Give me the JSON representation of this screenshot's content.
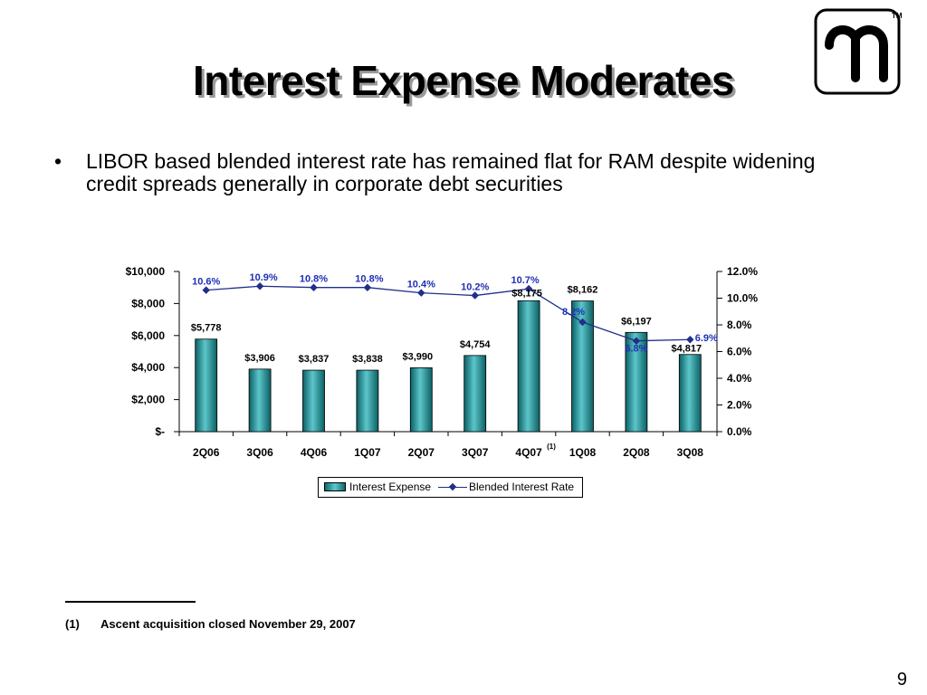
{
  "slide": {
    "title": "Interest Expense Moderates",
    "bullet": "LIBOR based blended interest rate has remained flat for RAM despite widening credit spreads generally in corporate debt securities",
    "bullet_marker": "•",
    "logo": {
      "icon": "company-logo-icon",
      "trademark": "TM"
    },
    "footnote": {
      "number": "(1)",
      "text": "Ascent acquisition closed November 29, 2007"
    },
    "page_number": "9"
  },
  "chart_data": {
    "type": "bar",
    "categories": [
      "2Q06",
      "3Q06",
      "4Q06",
      "1Q07",
      "2Q07",
      "3Q07",
      "4Q07",
      "1Q08",
      "2Q08",
      "3Q08"
    ],
    "category_superscript": {
      "index": 6,
      "text": "(1)"
    },
    "series": [
      {
        "name": "Interest Expense",
        "kind": "bar",
        "axis": "left",
        "values": [
          5778,
          3906,
          3837,
          3838,
          3990,
          4754,
          8175,
          8162,
          6197,
          4817
        ],
        "labels": [
          "$5,778",
          "$3,906",
          "$3,837",
          "$3,838",
          "$3,990",
          "$4,754",
          "$8,175",
          "$8,162",
          "$6,197",
          "$4,817"
        ],
        "color": "#1a8a8e"
      },
      {
        "name": "Blended Interest Rate",
        "kind": "line",
        "axis": "right",
        "values": [
          10.6,
          10.9,
          10.8,
          10.8,
          10.4,
          10.2,
          10.7,
          8.2,
          6.8,
          6.9
        ],
        "labels": [
          "10.6%",
          "10.9%",
          "10.8%",
          "10.8%",
          "10.4%",
          "10.2%",
          "10.7%",
          "8.2%",
          "6.8%",
          "6.9%"
        ],
        "color": "#1f2f8a"
      }
    ],
    "y_left": {
      "range": [
        0,
        10000
      ],
      "ticks": [
        "$-",
        "$2,000",
        "$4,000",
        "$6,000",
        "$8,000",
        "$10,000"
      ]
    },
    "y_right": {
      "range": [
        0,
        12
      ],
      "ticks": [
        "0.0%",
        "2.0%",
        "4.0%",
        "6.0%",
        "8.0%",
        "10.0%",
        "12.0%"
      ]
    },
    "grid": false,
    "legend": "bottom",
    "title": "",
    "xlabel": "",
    "ylabel": ""
  }
}
